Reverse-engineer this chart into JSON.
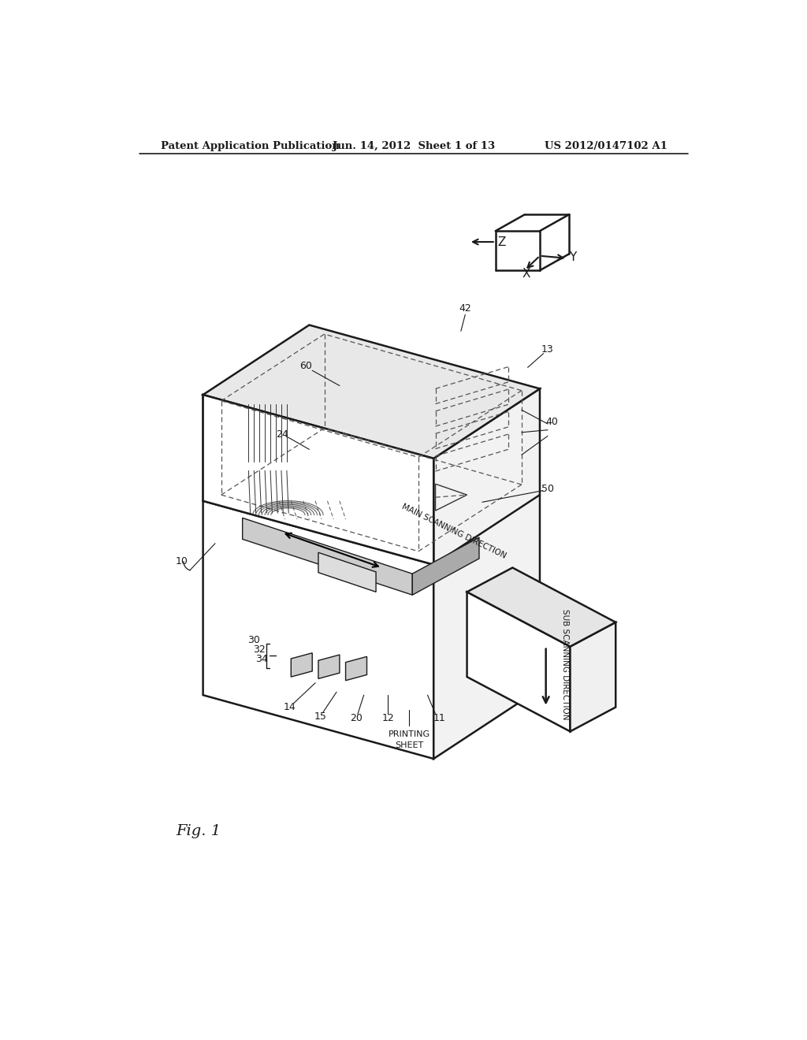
{
  "bg_color": "#ffffff",
  "header_left": "Patent Application Publication",
  "header_center": "Jun. 14, 2012  Sheet 1 of 13",
  "header_right": "US 2012/0147102 A1",
  "figure_label": "Fig. 1",
  "line_color": "#1a1a1a",
  "lw_main": 1.8,
  "lw_thin": 1.0,
  "lw_dashed": 0.9
}
